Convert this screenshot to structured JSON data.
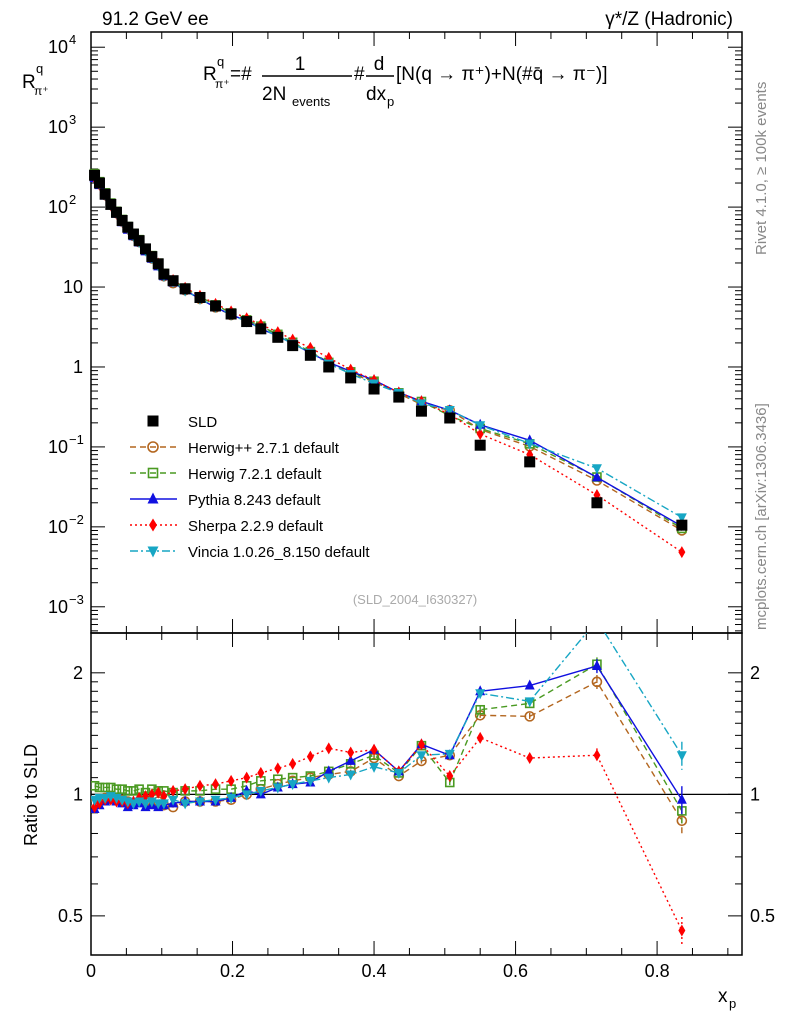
{
  "header": {
    "left": "91.2 GeV ee",
    "right": "γ*/Z (Hadronic)"
  },
  "side_labels": {
    "rivet": "Rivet 4.1.0, ≥ 100k events",
    "mcplots": "mcplots.cern.ch [arXiv:1306.3436]"
  },
  "analysis_id": "(SLD_2004_I630327)",
  "formula": {
    "R": "R",
    "sup": "q",
    "sub": "π⁺",
    "eq": "=#",
    "num": "1",
    "den": "2N",
    "den_sub": "events",
    "hash": "#",
    "dnum": "d",
    "dden": "dx",
    "dden_sub": "p",
    "rest": "[N(q → π⁺)+N(#q̄ → π⁻)]"
  },
  "colors": {
    "SLD": "#000000",
    "Herwig++": "#b3661f",
    "Herwig7": "#4a9a22",
    "Pythia": "#1010e0",
    "Sherpa": "#ff0000",
    "Vincia": "#17a6c4"
  },
  "chart_data": [
    {
      "type": "scatter",
      "title": "",
      "ylabel_main": "R",
      "ylabel_sup": "q",
      "ylabel_sub": "π⁺",
      "xlabel_main": "x",
      "xlabel_sub": "p",
      "yscale": "log",
      "ylim": [
        0.00047,
        15500
      ],
      "xlim": [
        0,
        0.92
      ],
      "yticks": [
        {
          "v": 10000,
          "base": "10",
          "exp": "4"
        },
        {
          "v": 1000,
          "base": "10",
          "exp": "3"
        },
        {
          "v": 100,
          "base": "10",
          "exp": "2"
        },
        {
          "v": 10,
          "base": "10",
          "exp": ""
        },
        {
          "v": 1,
          "base": "1",
          "exp": ""
        },
        {
          "v": 0.1,
          "base": "10",
          "exp": "−1"
        },
        {
          "v": 0.01,
          "base": "10",
          "exp": "−2"
        },
        {
          "v": 0.001,
          "base": "10",
          "exp": "−3"
        }
      ],
      "x": [
        0.005,
        0.012,
        0.02,
        0.028,
        0.036,
        0.044,
        0.052,
        0.06,
        0.068,
        0.077,
        0.086,
        0.095,
        0.103,
        0.116,
        0.133,
        0.154,
        0.176,
        0.198,
        0.22,
        0.24,
        0.264,
        0.285,
        0.31,
        0.336,
        0.367,
        0.4,
        0.435,
        0.467,
        0.507,
        0.55,
        0.62,
        0.715,
        0.835
      ],
      "data": {
        "name": "SLD",
        "values": [
          250,
          200,
          145,
          108,
          86,
          68,
          56,
          46,
          38,
          30,
          24,
          19.5,
          14.5,
          12,
          9.5,
          7.4,
          5.8,
          4.6,
          3.7,
          3.0,
          2.35,
          1.85,
          1.4,
          1.0,
          0.73,
          0.53,
          0.42,
          0.28,
          0.23,
          0.105,
          0.065,
          0.02,
          0.0105
        ]
      },
      "legend_position": "lower-left"
    },
    {
      "type": "line",
      "ylabel": "Ratio to SLD",
      "yscale": "log",
      "ylim": [
        0.4,
        2.51
      ],
      "xlim": [
        0,
        0.92
      ],
      "yticks": [
        {
          "v": 2,
          "label": "2"
        },
        {
          "v": 1,
          "label": "1"
        },
        {
          "v": 0.5,
          "label": "0.5"
        }
      ],
      "xticks": [
        {
          "v": 0,
          "label": "0"
        },
        {
          "v": 0.2,
          "label": "0.2"
        },
        {
          "v": 0.4,
          "label": "0.4"
        },
        {
          "v": 0.6,
          "label": "0.6"
        },
        {
          "v": 0.8,
          "label": "0.8"
        }
      ],
      "series": [
        {
          "key": "Herwig++",
          "name": "Herwig++ 2.7.1 default",
          "marker": "circle-open",
          "dash": "6,4",
          "ratio": [
            0.95,
            0.97,
            0.98,
            0.99,
            0.98,
            0.97,
            0.96,
            0.95,
            0.96,
            0.96,
            0.95,
            0.96,
            0.94,
            0.93,
            0.96,
            0.96,
            0.96,
            0.97,
            1.0,
            1.03,
            1.06,
            1.08,
            1.1,
            1.12,
            1.14,
            1.23,
            1.11,
            1.21,
            1.25,
            1.57,
            1.56,
            1.9,
            0.86
          ]
        },
        {
          "key": "Herwig7",
          "name": "Herwig 7.2.1 default",
          "marker": "square-open",
          "dash": "6,4",
          "ratio": [
            1.05,
            1.04,
            1.04,
            1.04,
            1.03,
            1.03,
            1.02,
            1.02,
            1.03,
            1.01,
            1.03,
            1.02,
            1.02,
            1.01,
            1.02,
            1.02,
            1.03,
            1.03,
            1.05,
            1.08,
            1.09,
            1.1,
            1.11,
            1.14,
            1.19,
            1.25,
            1.13,
            1.32,
            1.07,
            1.62,
            1.68,
            2.1,
            0.91
          ]
        },
        {
          "key": "Pythia",
          "name": "Pythia 8.243 default",
          "marker": "triangle-up",
          "dash": "",
          "ratio": [
            0.92,
            0.94,
            0.96,
            0.97,
            0.96,
            0.95,
            0.93,
            0.94,
            0.95,
            0.93,
            0.94,
            0.93,
            0.94,
            0.95,
            0.96,
            0.96,
            0.96,
            0.98,
            1.02,
            1.0,
            1.04,
            1.06,
            1.07,
            1.14,
            1.21,
            1.29,
            1.14,
            1.33,
            1.25,
            1.8,
            1.86,
            2.08,
            0.97
          ]
        },
        {
          "key": "Sherpa",
          "name": "Sherpa 2.2.9 default",
          "marker": "diamond",
          "dash": "2,3",
          "ratio": [
            0.93,
            0.95,
            0.97,
            0.97,
            0.96,
            0.96,
            0.95,
            0.96,
            0.98,
            0.99,
            1.0,
            1.01,
            0.99,
            1.02,
            1.03,
            1.05,
            1.06,
            1.08,
            1.1,
            1.13,
            1.16,
            1.19,
            1.24,
            1.3,
            1.27,
            1.29,
            1.14,
            1.33,
            1.11,
            1.38,
            1.23,
            1.25,
            0.46
          ]
        },
        {
          "key": "Vincia",
          "name": "Vincia 1.0.26_8.150 default",
          "marker": "triangle-down",
          "dash": "8,3,2,3",
          "ratio": [
            0.97,
            0.98,
            0.98,
            0.99,
            0.98,
            0.97,
            0.96,
            0.95,
            0.96,
            0.95,
            0.96,
            0.95,
            0.95,
            0.97,
            0.95,
            0.96,
            0.97,
            0.98,
            1.0,
            1.02,
            1.04,
            1.06,
            1.08,
            1.1,
            1.12,
            1.17,
            1.13,
            1.25,
            1.26,
            1.78,
            1.7,
            2.7,
            1.25
          ]
        }
      ],
      "mc_rel_err": [
        0.005,
        0.005,
        0.005,
        0.005,
        0.005,
        0.005,
        0.005,
        0.005,
        0.005,
        0.005,
        0.005,
        0.005,
        0.005,
        0.005,
        0.005,
        0.005,
        0.005,
        0.005,
        0.005,
        0.005,
        0.005,
        0.005,
        0.01,
        0.01,
        0.01,
        0.01,
        0.01,
        0.015,
        0.015,
        0.02,
        0.02,
        0.04,
        0.08
      ]
    }
  ]
}
